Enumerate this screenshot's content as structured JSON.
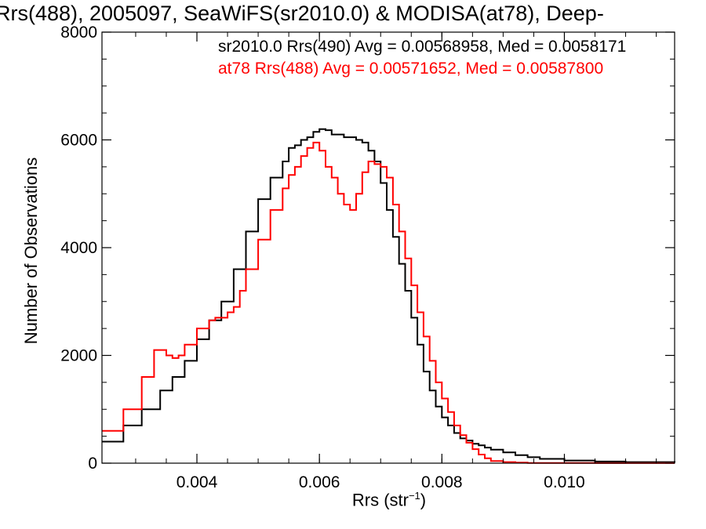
{
  "chart_data": {
    "type": "line",
    "title": "Rrs(488), 2005097, SeaWiFS(sr2010.0) & MODISA(at78), Deep-",
    "xlabel": {
      "base": "Rrs (str",
      "sup": "−1",
      "suffix": ")"
    },
    "ylabel": "Number of Observations",
    "xlim": [
      0.00245,
      0.0118
    ],
    "ylim": [
      0,
      8000
    ],
    "x_ticks": [
      0.004,
      0.006,
      0.008,
      0.01
    ],
    "x_tick_labels": [
      "0.004",
      "0.006",
      "0.008",
      "0.010"
    ],
    "y_ticks": [
      0,
      2000,
      4000,
      6000,
      8000
    ],
    "y_tick_labels": [
      "0",
      "2000",
      "4000",
      "6000",
      "8000"
    ],
    "grid": false,
    "legend_placement": "top",
    "series": [
      {
        "name": "sr2010.0 Rrs(490) Avg = 0.00568958, Med = 0.0058171",
        "color": "#000000",
        "step": "post",
        "x": [
          0.00245,
          0.0028,
          0.0031,
          0.0034,
          0.0036,
          0.0038,
          0.004,
          0.0042,
          0.0044,
          0.0046,
          0.0048,
          0.005,
          0.0052,
          0.0054,
          0.0055,
          0.0056,
          0.0057,
          0.0058,
          0.0059,
          0.006,
          0.0061,
          0.0062,
          0.0063,
          0.0064,
          0.0065,
          0.0066,
          0.0067,
          0.0068,
          0.0069,
          0.007,
          0.0071,
          0.0072,
          0.0073,
          0.0074,
          0.0075,
          0.0076,
          0.0077,
          0.0078,
          0.0079,
          0.008,
          0.0081,
          0.0082,
          0.0083,
          0.0084,
          0.0085,
          0.0086,
          0.0087,
          0.0088,
          0.009,
          0.0092,
          0.0094,
          0.0096,
          0.01,
          0.0105,
          0.011,
          0.0118
        ],
        "y": [
          400,
          700,
          1000,
          1350,
          1600,
          1900,
          2300,
          2650,
          3000,
          3600,
          4300,
          4900,
          5300,
          5600,
          5850,
          5900,
          6000,
          6050,
          6150,
          6200,
          6180,
          6100,
          6100,
          6050,
          6050,
          6000,
          5950,
          5800,
          5600,
          5200,
          4700,
          4200,
          3700,
          3200,
          2700,
          2200,
          1700,
          1350,
          1050,
          850,
          700,
          560,
          460,
          420,
          360,
          330,
          290,
          250,
          200,
          150,
          110,
          80,
          50,
          30,
          20,
          15
        ]
      },
      {
        "name": "at78 Rrs(488) Avg = 0.00571652, Med = 0.00587800",
        "color": "#ff0000",
        "step": "post",
        "x": [
          0.00245,
          0.0028,
          0.0031,
          0.0033,
          0.0034,
          0.0035,
          0.0036,
          0.0037,
          0.0038,
          0.004,
          0.0042,
          0.0043,
          0.0044,
          0.0045,
          0.0046,
          0.0047,
          0.0048,
          0.005,
          0.0052,
          0.0054,
          0.0055,
          0.0056,
          0.0057,
          0.0058,
          0.0059,
          0.006,
          0.0061,
          0.0062,
          0.0063,
          0.0064,
          0.0065,
          0.0066,
          0.0067,
          0.0068,
          0.0069,
          0.007,
          0.0071,
          0.0072,
          0.0073,
          0.0074,
          0.0075,
          0.0076,
          0.0077,
          0.0078,
          0.0079,
          0.008,
          0.0081,
          0.0082,
          0.0083,
          0.0084,
          0.0085,
          0.0086,
          0.0087,
          0.0088,
          0.009,
          0.0092,
          0.0094,
          0.0096,
          0.01,
          0.0105,
          0.011,
          0.0118
        ],
        "y": [
          600,
          1000,
          1600,
          2100,
          2100,
          2000,
          1950,
          2000,
          2200,
          2500,
          2650,
          2700,
          2700,
          2800,
          2900,
          3200,
          3600,
          4150,
          4700,
          5100,
          5350,
          5500,
          5700,
          5850,
          5950,
          5800,
          5500,
          5300,
          5000,
          4800,
          4700,
          5000,
          5400,
          5600,
          5550,
          5500,
          5300,
          4800,
          4300,
          3800,
          3300,
          2800,
          2350,
          1900,
          1500,
          1200,
          950,
          700,
          520,
          380,
          260,
          160,
          90,
          40,
          20,
          10,
          5,
          5,
          3,
          2,
          2,
          2
        ]
      }
    ]
  }
}
